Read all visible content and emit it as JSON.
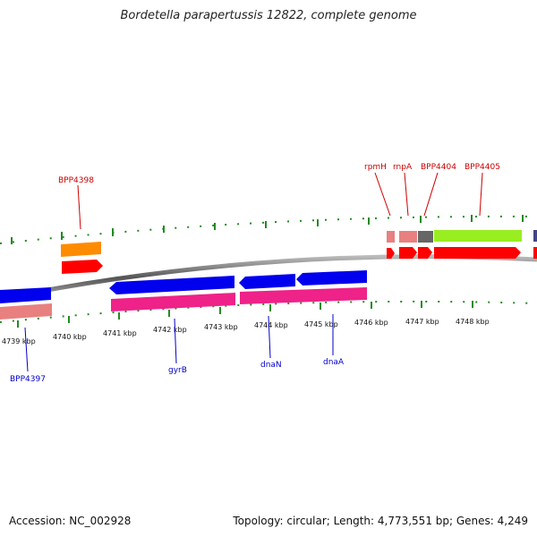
{
  "title": "Bordetella parapertussis 12822, complete genome",
  "footer": {
    "accession": "Accession: NC_002928",
    "stats": "Topology: circular; Length: 4,773,551 bp; Genes: 4,249"
  },
  "axis_labels": [
    "4739 kbp",
    "4740 kbp",
    "4741 kbp",
    "4742 kbp",
    "4743 kbp",
    "4744 kbp",
    "4745 kbp",
    "4746 kbp",
    "4747 kbp",
    "4748 kbp"
  ],
  "gene_labels_top": [
    "BPP4398",
    "rpmH",
    "rnpA",
    "BPP4404",
    "BPP4405"
  ],
  "gene_labels_bottom": [
    "BPP4397",
    "gyrB",
    "dnaN",
    "dnaA"
  ],
  "colors": {
    "red": "#ff0000",
    "orange": "#ff8c00",
    "blue": "#0000ee",
    "pink": "#ee2288",
    "salmon": "#e88080",
    "green": "#99ee22",
    "gray": "#666666",
    "tick": "#228b22"
  }
}
